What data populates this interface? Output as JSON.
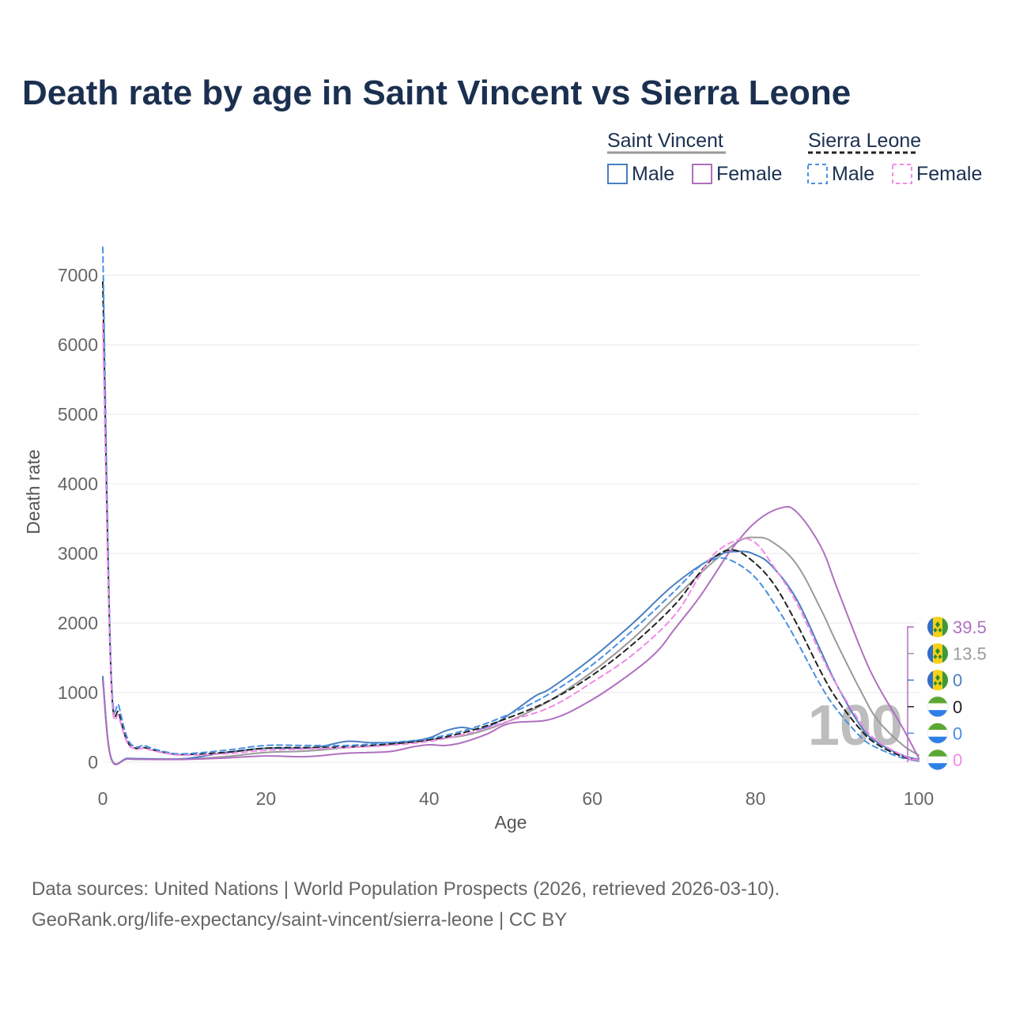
{
  "chart_data": {
    "type": "line",
    "title": "Death rate by age in Saint Vincent vs Sierra Leone",
    "xlabel": "Age",
    "ylabel": "Death rate",
    "xlim": [
      0,
      100
    ],
    "ylim": [
      0,
      7000
    ],
    "xticks": [
      "0",
      "20",
      "40",
      "60",
      "80",
      "100"
    ],
    "yticks": [
      "0",
      "1000",
      "2000",
      "3000",
      "4000",
      "5000",
      "6000",
      "7000"
    ],
    "grid": true,
    "watermark": "100",
    "legend": {
      "placement": "top-right",
      "groups": [
        {
          "name": "Saint Vincent",
          "color": "#999999",
          "style": "solid",
          "items": [
            "Male",
            "Female"
          ]
        },
        {
          "name": "Sierra Leone",
          "color": "#222222",
          "style": "dashed",
          "items": [
            "Male",
            "Female"
          ]
        }
      ]
    },
    "series": [
      {
        "name": "Saint Vincent total",
        "color": "#9a9a9a",
        "dash": false,
        "width": 2,
        "points": [
          [
            0,
            1200
          ],
          [
            1,
            70
          ],
          [
            3,
            50
          ],
          [
            5,
            45
          ],
          [
            10,
            45
          ],
          [
            15,
            80
          ],
          [
            20,
            140
          ],
          [
            25,
            160
          ],
          [
            30,
            210
          ],
          [
            35,
            250
          ],
          [
            40,
            320
          ],
          [
            45,
            400
          ],
          [
            50,
            600
          ],
          [
            55,
            900
          ],
          [
            60,
            1300
          ],
          [
            65,
            1780
          ],
          [
            70,
            2350
          ],
          [
            75,
            2900
          ],
          [
            78,
            3180
          ],
          [
            80,
            3230
          ],
          [
            82,
            3170
          ],
          [
            85,
            2850
          ],
          [
            88,
            2200
          ],
          [
            90,
            1700
          ],
          [
            93,
            1000
          ],
          [
            95,
            600
          ],
          [
            98,
            250
          ],
          [
            100,
            100
          ]
        ],
        "end_label": "13.5"
      },
      {
        "name": "Saint Vincent Male",
        "color": "#4a7fc1",
        "dash": false,
        "width": 2,
        "points": [
          [
            0,
            1230
          ],
          [
            1,
            65
          ],
          [
            3,
            55
          ],
          [
            5,
            50
          ],
          [
            10,
            50
          ],
          [
            15,
            140
          ],
          [
            20,
            200
          ],
          [
            25,
            200
          ],
          [
            27,
            230
          ],
          [
            30,
            300
          ],
          [
            33,
            280
          ],
          [
            37,
            290
          ],
          [
            40,
            350
          ],
          [
            42,
            450
          ],
          [
            44,
            500
          ],
          [
            46,
            470
          ],
          [
            48,
            550
          ],
          [
            50,
            700
          ],
          [
            53,
            950
          ],
          [
            55,
            1070
          ],
          [
            60,
            1500
          ],
          [
            65,
            2000
          ],
          [
            70,
            2550
          ],
          [
            75,
            2950
          ],
          [
            78,
            3030
          ],
          [
            80,
            2980
          ],
          [
            82,
            2820
          ],
          [
            85,
            2350
          ],
          [
            88,
            1600
          ],
          [
            90,
            1100
          ],
          [
            93,
            500
          ],
          [
            95,
            280
          ],
          [
            98,
            100
          ],
          [
            100,
            40
          ]
        ],
        "end_label": "0"
      },
      {
        "name": "Saint Vincent Female",
        "color": "#b070c0",
        "dash": false,
        "width": 2,
        "points": [
          [
            0,
            1180
          ],
          [
            1,
            60
          ],
          [
            3,
            45
          ],
          [
            5,
            40
          ],
          [
            10,
            40
          ],
          [
            15,
            60
          ],
          [
            20,
            90
          ],
          [
            25,
            80
          ],
          [
            30,
            130
          ],
          [
            35,
            150
          ],
          [
            38,
            220
          ],
          [
            40,
            250
          ],
          [
            42,
            240
          ],
          [
            44,
            280
          ],
          [
            47,
            400
          ],
          [
            50,
            560
          ],
          [
            55,
            620
          ],
          [
            60,
            900
          ],
          [
            65,
            1300
          ],
          [
            68,
            1600
          ],
          [
            70,
            1900
          ],
          [
            73,
            2350
          ],
          [
            75,
            2700
          ],
          [
            77,
            3050
          ],
          [
            80,
            3450
          ],
          [
            83,
            3650
          ],
          [
            85,
            3600
          ],
          [
            88,
            3100
          ],
          [
            90,
            2500
          ],
          [
            93,
            1600
          ],
          [
            95,
            1100
          ],
          [
            98,
            500
          ],
          [
            100,
            60
          ]
        ],
        "end_label": "39.5"
      },
      {
        "name": "Sierra Leone total",
        "color": "#222222",
        "dash": true,
        "width": 2,
        "points": [
          [
            0,
            6900
          ],
          [
            1,
            1300
          ],
          [
            2,
            700
          ],
          [
            3,
            300
          ],
          [
            4,
            200
          ],
          [
            5,
            210
          ],
          [
            6,
            180
          ],
          [
            8,
            130
          ],
          [
            10,
            110
          ],
          [
            15,
            140
          ],
          [
            20,
            200
          ],
          [
            25,
            210
          ],
          [
            30,
            220
          ],
          [
            35,
            260
          ],
          [
            40,
            320
          ],
          [
            45,
            450
          ],
          [
            50,
            650
          ],
          [
            55,
            900
          ],
          [
            60,
            1250
          ],
          [
            65,
            1700
          ],
          [
            70,
            2250
          ],
          [
            73,
            2700
          ],
          [
            75,
            2950
          ],
          [
            77,
            3050
          ],
          [
            79,
            2950
          ],
          [
            82,
            2600
          ],
          [
            85,
            2000
          ],
          [
            88,
            1300
          ],
          [
            90,
            900
          ],
          [
            93,
            450
          ],
          [
            95,
            250
          ],
          [
            98,
            80
          ],
          [
            100,
            20
          ]
        ],
        "end_label": "0"
      },
      {
        "name": "Sierra Leone Male",
        "color": "#4a90e2",
        "dash": true,
        "width": 2,
        "points": [
          [
            0,
            7400
          ],
          [
            1,
            1400
          ],
          [
            2,
            800
          ],
          [
            3,
            350
          ],
          [
            4,
            220
          ],
          [
            5,
            240
          ],
          [
            6,
            200
          ],
          [
            8,
            140
          ],
          [
            10,
            120
          ],
          [
            15,
            170
          ],
          [
            20,
            240
          ],
          [
            25,
            240
          ],
          [
            30,
            240
          ],
          [
            35,
            280
          ],
          [
            40,
            340
          ],
          [
            45,
            480
          ],
          [
            50,
            700
          ],
          [
            55,
            1000
          ],
          [
            60,
            1400
          ],
          [
            65,
            1900
          ],
          [
            70,
            2450
          ],
          [
            73,
            2800
          ],
          [
            75,
            2920
          ],
          [
            77,
            2900
          ],
          [
            80,
            2650
          ],
          [
            83,
            2150
          ],
          [
            85,
            1750
          ],
          [
            88,
            1100
          ],
          [
            90,
            750
          ],
          [
            93,
            350
          ],
          [
            95,
            200
          ],
          [
            98,
            60
          ],
          [
            100,
            15
          ]
        ],
        "end_label": "0"
      },
      {
        "name": "Sierra Leone Female",
        "color": "#f28ae6",
        "dash": true,
        "width": 2,
        "points": [
          [
            0,
            6300
          ],
          [
            1,
            1200
          ],
          [
            2,
            650
          ],
          [
            3,
            280
          ],
          [
            4,
            190
          ],
          [
            5,
            200
          ],
          [
            6,
            170
          ],
          [
            8,
            120
          ],
          [
            10,
            100
          ],
          [
            15,
            120
          ],
          [
            20,
            170
          ],
          [
            25,
            190
          ],
          [
            30,
            210
          ],
          [
            35,
            240
          ],
          [
            40,
            300
          ],
          [
            45,
            420
          ],
          [
            50,
            600
          ],
          [
            55,
            800
          ],
          [
            60,
            1150
          ],
          [
            65,
            1550
          ],
          [
            70,
            2100
          ],
          [
            73,
            2650
          ],
          [
            75,
            3000
          ],
          [
            78,
            3200
          ],
          [
            80,
            3150
          ],
          [
            82,
            2850
          ],
          [
            85,
            2300
          ],
          [
            88,
            1550
          ],
          [
            90,
            1100
          ],
          [
            93,
            550
          ],
          [
            95,
            300
          ],
          [
            98,
            100
          ],
          [
            100,
            25
          ]
        ],
        "end_label": "0"
      }
    ],
    "footer": [
      "Data sources: United Nations | World Population Prospects (2026, retrieved 2026-03-10).",
      "GeoRank.org/life-expectancy/saint-vincent/sierra-leone | CC BY"
    ]
  }
}
